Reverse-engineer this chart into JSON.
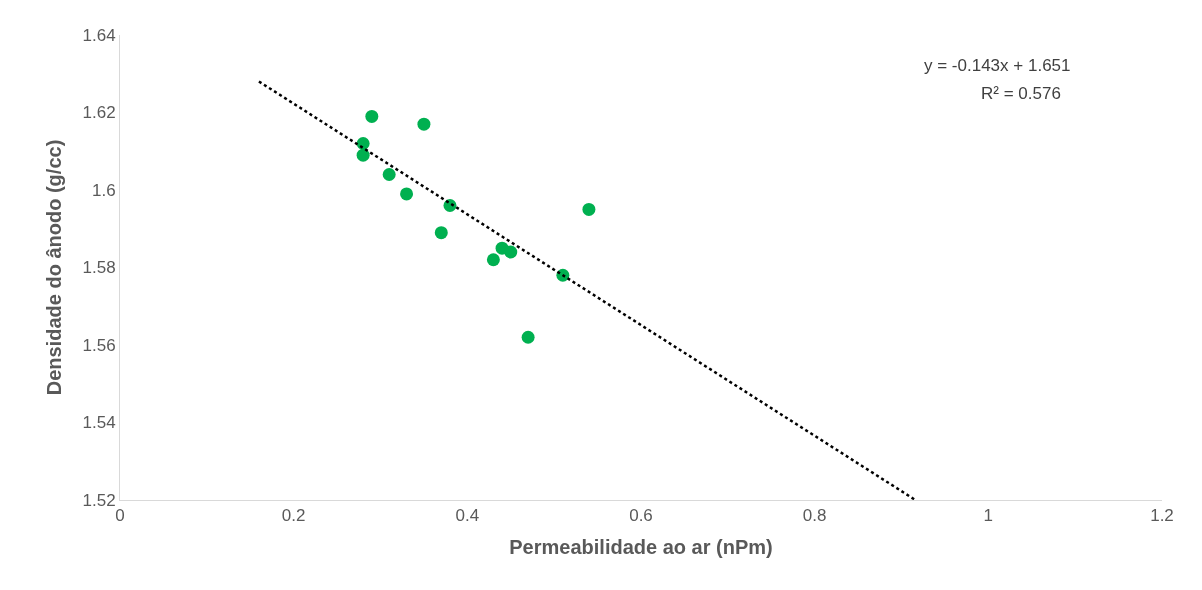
{
  "chart_data": {
    "type": "scatter",
    "xlabel": "Permeabilidade ao ar (nPm)",
    "ylabel": "Densidade do ânodo (g/cc)",
    "xlim": [
      0,
      1.2
    ],
    "xticks": [
      0,
      0.2,
      0.4,
      0.6,
      0.8,
      1,
      1.2
    ],
    "ylim": [
      1.52,
      1.64
    ],
    "yticks": [
      1.52,
      1.54,
      1.56,
      1.58,
      1.6,
      1.62,
      1.64
    ],
    "annotations": [
      "y = -0.143x + 1.651",
      "R² = 0.576"
    ],
    "series": [
      {
        "color": "#00b050",
        "x": [
          0.28,
          0.29,
          0.28,
          0.35,
          0.31,
          0.33,
          0.38,
          0.37,
          0.54,
          0.44,
          0.45,
          0.43,
          0.51,
          0.47
        ],
        "values": [
          1.612,
          1.619,
          1.609,
          1.617,
          1.604,
          1.599,
          1.596,
          1.589,
          1.595,
          1.585,
          1.584,
          1.582,
          1.578,
          1.562
        ]
      },
      {
        "type": "line",
        "color": "#000000",
        "line_style": "dotted",
        "marker": "none",
        "x": [
          0.16,
          0.916
        ],
        "values": [
          1.628,
          1.52
        ]
      }
    ]
  }
}
